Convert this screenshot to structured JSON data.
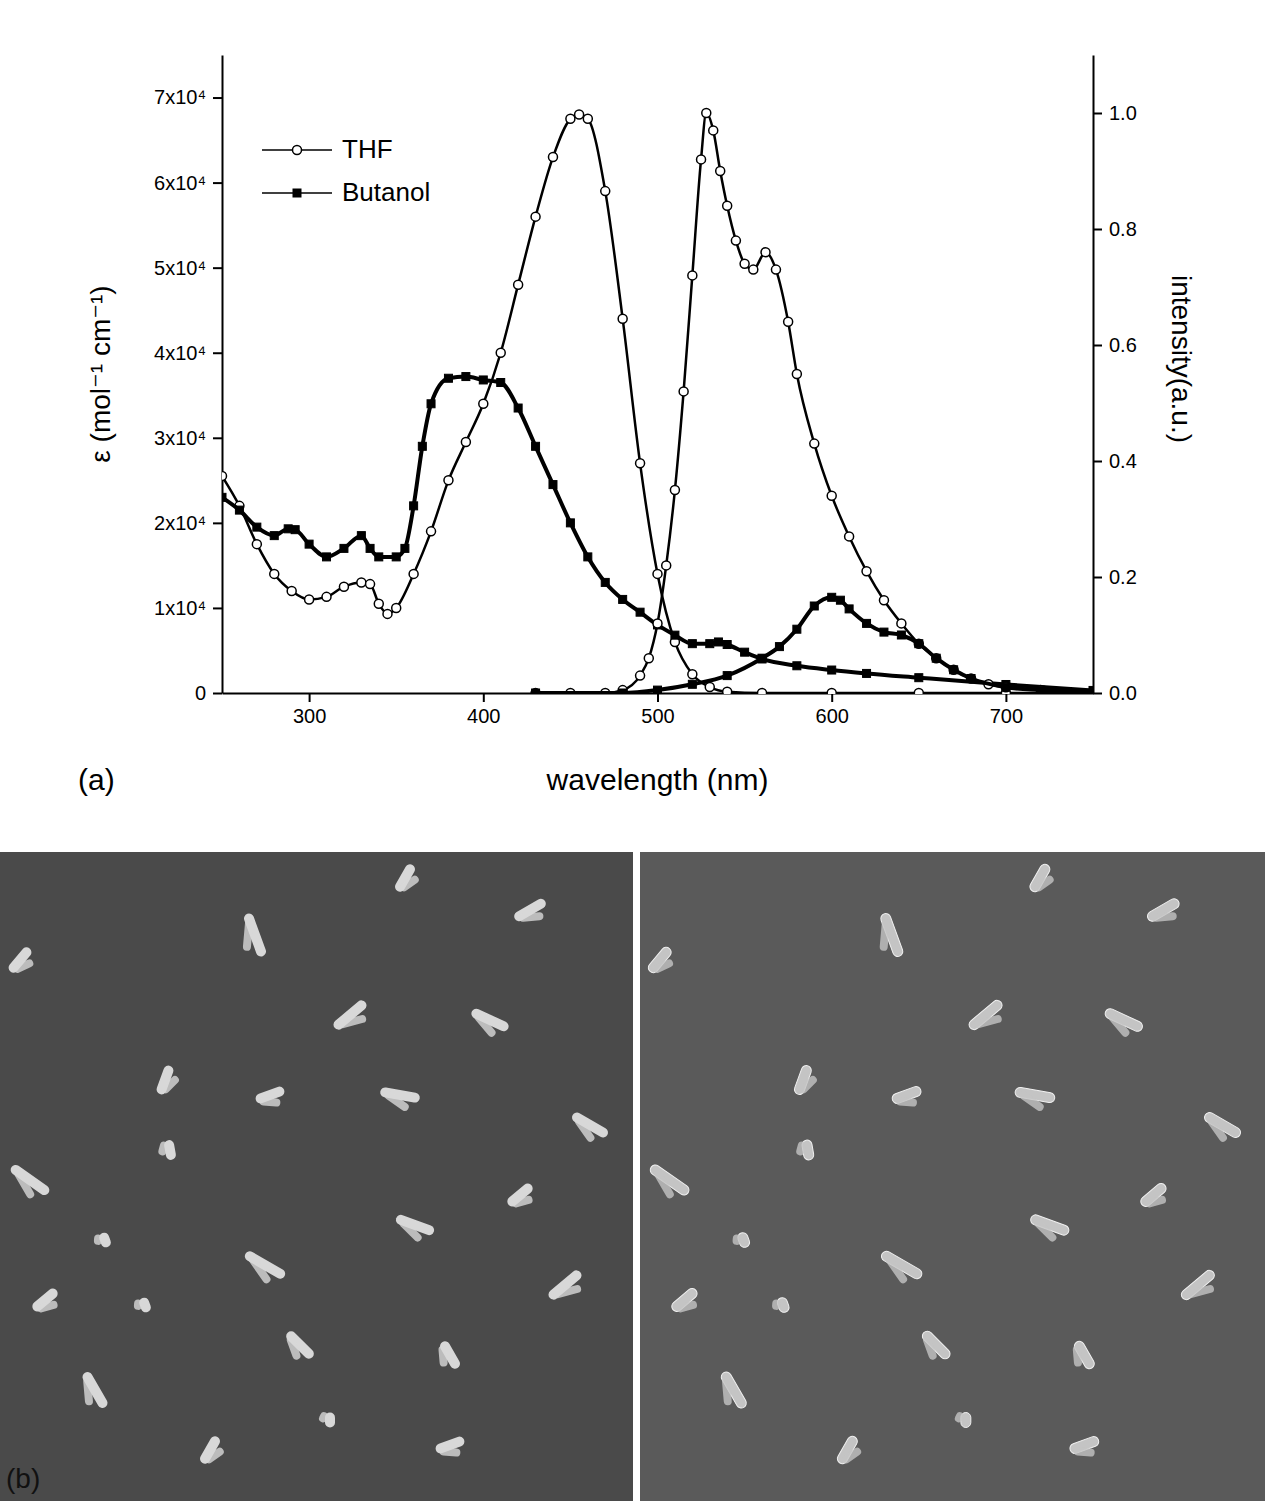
{
  "panel_labels": [
    "(a)",
    "(b)"
  ],
  "chart_data": {
    "type": "line",
    "x_label": "wavelength (nm)",
    "y_label": "ε (mol⁻¹ cm⁻¹)",
    "y2_label": "intensity(a.u.)",
    "xlim": [
      250,
      750
    ],
    "xticks": [
      300,
      400,
      500,
      600,
      700
    ],
    "ylim": [
      0,
      75000
    ],
    "yticks": [
      0,
      {
        "value": 10000,
        "label": "1x10⁴"
      },
      {
        "value": 20000,
        "label": "2x10⁴"
      },
      {
        "value": 30000,
        "label": "3x10⁴"
      },
      {
        "value": 40000,
        "label": "4x10⁴"
      },
      {
        "value": 50000,
        "label": "5x10⁴"
      },
      {
        "value": 60000,
        "label": "6x10⁴"
      },
      {
        "value": 70000,
        "label": "7x10⁴"
      }
    ],
    "y2lim": [
      0,
      1.1
    ],
    "y2ticks": [
      {
        "value": 0,
        "label": "0.0"
      },
      0.2,
      0.4,
      0.6,
      0.8,
      {
        "value": 1,
        "label": "1.0"
      }
    ],
    "color": "#000000",
    "legend": "upper left",
    "grid": false,
    "series": [
      {
        "name": "THF",
        "marker": "circle-open",
        "x": [
          250,
          260,
          270,
          280,
          290,
          300,
          310,
          320,
          330,
          335,
          340,
          345,
          350,
          360,
          370,
          380,
          390,
          400,
          410,
          420,
          430,
          440,
          450,
          455,
          460,
          470,
          480,
          490,
          500,
          510,
          520,
          530,
          540,
          560,
          600,
          650,
          700,
          750
        ],
        "values": [
          25500,
          22000,
          17500,
          14000,
          12000,
          11000,
          11300,
          12500,
          13000,
          12800,
          10500,
          9300,
          10000,
          14000,
          19000,
          25000,
          29500,
          34000,
          40000,
          48000,
          56000,
          63000,
          67500,
          68000,
          67500,
          59000,
          44000,
          27000,
          14000,
          6000,
          2200,
          700,
          150,
          0,
          0,
          0,
          0,
          0
        ]
      },
      {
        "name": "Butanol",
        "marker": "square",
        "x": [
          250,
          260,
          270,
          280,
          288,
          292,
          300,
          310,
          320,
          330,
          335,
          340,
          350,
          355,
          360,
          365,
          370,
          380,
          390,
          400,
          410,
          420,
          430,
          440,
          450,
          460,
          470,
          480,
          490,
          500,
          510,
          520,
          530,
          535,
          540,
          550,
          560,
          580,
          600,
          620,
          650,
          700,
          750
        ],
        "values": [
          23000,
          21500,
          19500,
          18500,
          19300,
          19200,
          17500,
          16000,
          17000,
          18500,
          17000,
          16000,
          16000,
          17000,
          22000,
          29000,
          34000,
          37000,
          37200,
          36800,
          36500,
          33500,
          29000,
          24500,
          20000,
          16000,
          13000,
          11000,
          9500,
          8000,
          6800,
          5800,
          5800,
          6000,
          5700,
          4800,
          4000,
          3200,
          2700,
          2300,
          1800,
          1000,
          300
        ]
      },
      {
        "axis": "y2",
        "marker": "circle-open",
        "x": [
          430,
          450,
          470,
          480,
          490,
          495,
          500,
          505,
          510,
          515,
          520,
          525,
          528,
          532,
          536,
          540,
          545,
          550,
          555,
          562,
          568,
          575,
          580,
          590,
          600,
          610,
          620,
          630,
          640,
          650,
          660,
          670,
          680,
          690,
          700,
          720,
          750
        ],
        "values": [
          0,
          0,
          0,
          0.005,
          0.03,
          0.06,
          0.12,
          0.22,
          0.35,
          0.52,
          0.72,
          0.92,
          1.0,
          0.97,
          0.9,
          0.84,
          0.78,
          0.74,
          0.73,
          0.76,
          0.73,
          0.64,
          0.55,
          0.43,
          0.34,
          0.27,
          0.21,
          0.16,
          0.12,
          0.085,
          0.06,
          0.04,
          0.025,
          0.015,
          0.01,
          0.005,
          0
        ]
      },
      {
        "axis": "y2",
        "marker": "square",
        "x": [
          430,
          480,
          500,
          520,
          540,
          560,
          570,
          580,
          590,
          600,
          605,
          610,
          620,
          630,
          640,
          650,
          660,
          670,
          680,
          700,
          720,
          750
        ],
        "values": [
          0,
          0,
          0.005,
          0.015,
          0.03,
          0.06,
          0.08,
          0.11,
          0.15,
          0.165,
          0.16,
          0.145,
          0.12,
          0.105,
          0.1,
          0.085,
          0.06,
          0.04,
          0.025,
          0.01,
          0.005,
          0
        ]
      }
    ]
  }
}
